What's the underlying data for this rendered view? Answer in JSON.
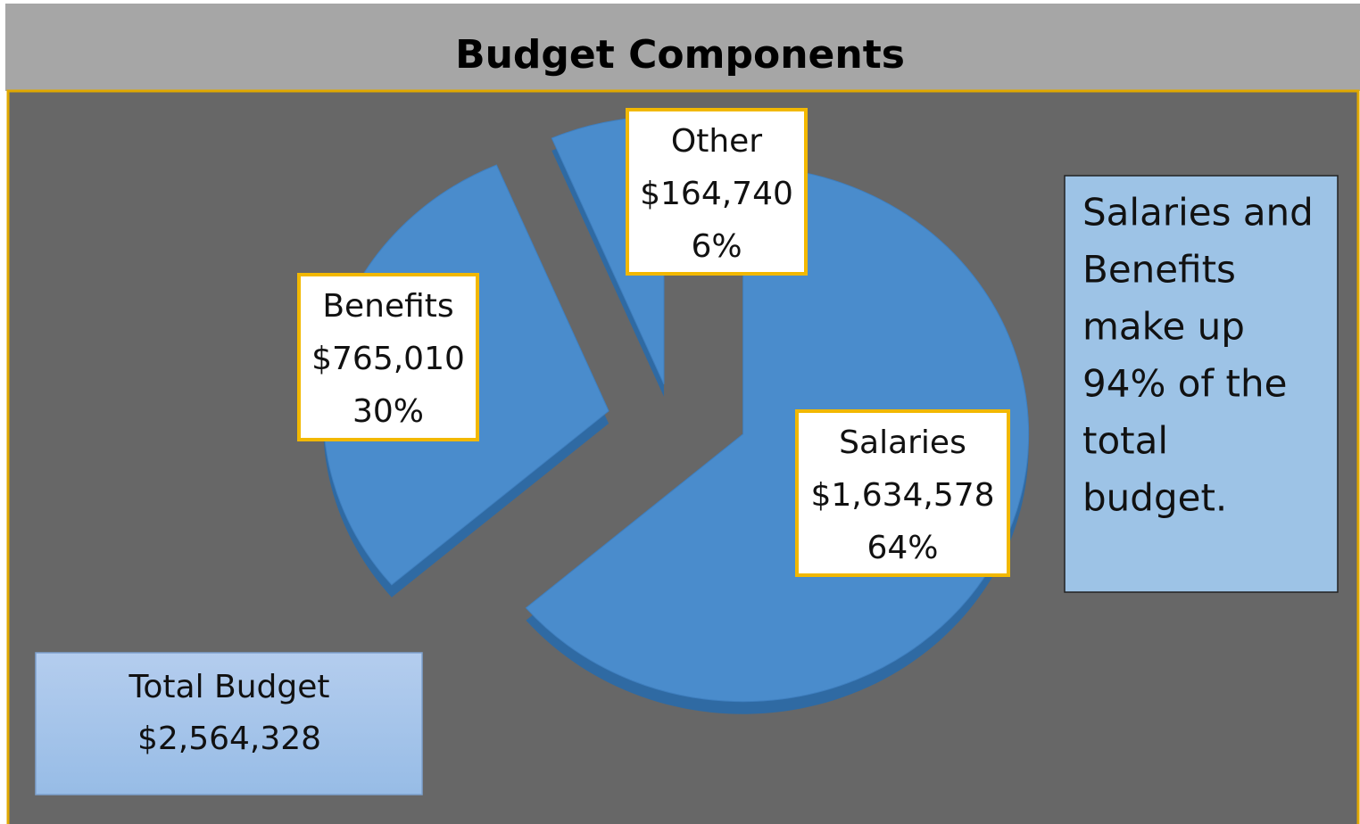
{
  "chart_data": {
    "type": "pie",
    "title": "Budget Components",
    "categories": [
      "Salaries",
      "Benefits",
      "Other"
    ],
    "values": [
      1634578,
      765010,
      164740
    ],
    "value_labels": [
      "$1,634,578",
      "$765,010",
      "$164,740"
    ],
    "percent_labels": [
      "64%",
      "30%",
      "6%"
    ],
    "color": "#4a8ccc",
    "annotations": {
      "total": [
        "Total Budget",
        "$2,564,328"
      ],
      "note": [
        "Salaries and",
        "Benefits",
        "make up",
        "94% of the",
        "total",
        "budget."
      ]
    }
  }
}
